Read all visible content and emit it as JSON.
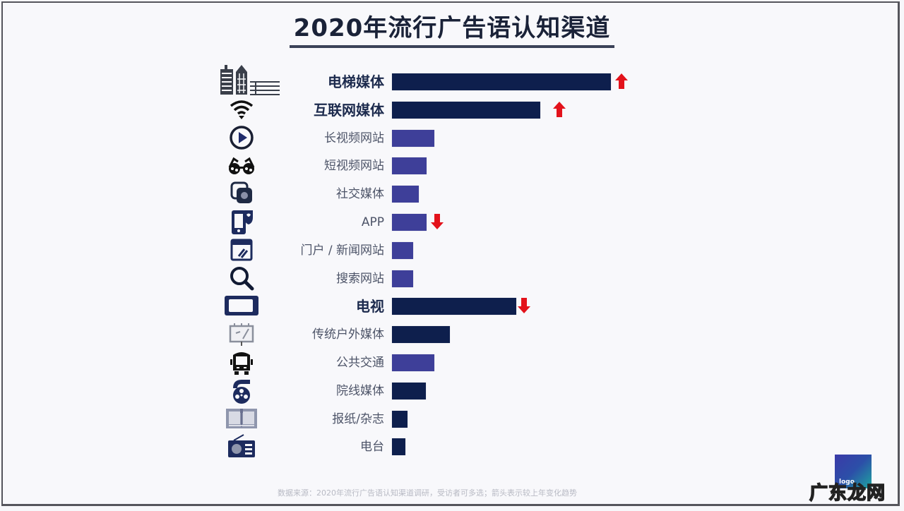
{
  "title": "2020年流行广告语认知渠道",
  "footnote": "数据来源：2020年流行广告语认知渠道调研，受访者可多选；箭头表示较上年变化趋势",
  "logo": {
    "text": "logo"
  },
  "watermark": "广东龙网",
  "colors": {
    "dark_bar": "#0e1f4d",
    "light_bar": "#3e3f99",
    "arrow": "#e3121b",
    "title": "#1a2238"
  },
  "rows": [
    {
      "label": "电梯媒体",
      "icon": "buildings-icon",
      "bold": true
    },
    {
      "label": "互联网媒体",
      "icon": "wifi-icon",
      "bold": true
    },
    {
      "label": "长视频网站",
      "icon": "play-icon",
      "bold": false
    },
    {
      "label": "短视频网站",
      "icon": "glasses-icon",
      "bold": false
    },
    {
      "label": "社交媒体",
      "icon": "social-icon",
      "bold": false
    },
    {
      "label": "APP",
      "icon": "phone-app-icon",
      "bold": false
    },
    {
      "label": "门户 / 新闻网站",
      "icon": "browser-icon",
      "bold": false
    },
    {
      "label": "搜索网站",
      "icon": "search-icon",
      "bold": false
    },
    {
      "label": "电视",
      "icon": "tv-icon",
      "bold": true
    },
    {
      "label": "传统户外媒体",
      "icon": "billboard-icon",
      "bold": false
    },
    {
      "label": "公共交通",
      "icon": "bus-icon",
      "bold": false
    },
    {
      "label": "院线媒体",
      "icon": "film-reel-icon",
      "bold": false
    },
    {
      "label": "报纸/杂志",
      "icon": "newspaper-icon",
      "bold": false
    },
    {
      "label": "电台",
      "icon": "radio-icon",
      "bold": false
    }
  ],
  "chart_data": {
    "type": "bar",
    "orientation": "horizontal",
    "title": "2020年流行广告语认知渠道",
    "xlabel": "",
    "ylabel": "",
    "grid": false,
    "legend": null,
    "value_unit": "relative bar length (px, no axis shown)",
    "categories": [
      "电梯媒体",
      "互联网媒体",
      "长视频网站",
      "短视频网站",
      "社交媒体",
      "APP",
      "门户 / 新闻网站",
      "搜索网站",
      "电视",
      "传统户外媒体",
      "公共交通",
      "院线媒体",
      "报纸/杂志",
      "电台"
    ],
    "values": [
      310,
      210,
      60,
      49,
      38,
      49,
      30,
      30,
      176,
      82,
      60,
      48,
      22,
      19
    ],
    "bar_colors": [
      "#0e1f4d",
      "#0e1f4d",
      "#3e3f99",
      "#3e3f99",
      "#3e3f99",
      "#3e3f99",
      "#3e3f99",
      "#3e3f99",
      "#0e1f4d",
      "#0e1f4d",
      "#3e3f99",
      "#0e1f4d",
      "#0e1f4d",
      "#0e1f4d"
    ],
    "annotations": [
      {
        "category": "电梯媒体",
        "trend": "up"
      },
      {
        "category": "互联网媒体",
        "trend": "up"
      },
      {
        "category": "APP",
        "trend": "down"
      },
      {
        "category": "电视",
        "trend": "down"
      }
    ]
  }
}
